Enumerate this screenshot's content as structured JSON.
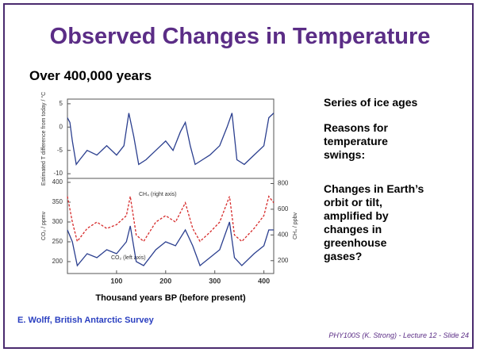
{
  "slide": {
    "title": "Observed Changes in Temperature",
    "subtitle": "Over 400,000 years",
    "points": [
      "Series of ice ages",
      "Reasons for temperature swings:",
      "Changes in Earth’s orbit or tilt, amplified by changes in greenhouse gases?"
    ],
    "credit": "E. Wolff, British Antarctic Survey",
    "footer": "PHY100S (K. Strong) - Lecture 12 - Slide 24"
  },
  "chart_data": [
    {
      "type": "line",
      "ylabel": "Estimated T difference from today / °C",
      "xlim": [
        0,
        420
      ],
      "ylim": [
        -11,
        6
      ],
      "yticks": [
        5,
        0,
        -5,
        -10
      ],
      "series": [
        {
          "color": "#2b3f8f",
          "x": [
            0,
            5,
            10,
            18,
            25,
            40,
            60,
            80,
            100,
            115,
            125,
            135,
            145,
            160,
            180,
            200,
            215,
            230,
            240,
            250,
            260,
            275,
            290,
            310,
            325,
            335,
            345,
            360,
            380,
            400,
            410,
            420
          ],
          "values": [
            2,
            1,
            -3,
            -8,
            -7,
            -5,
            -6,
            -4,
            -6,
            -4,
            3,
            -2,
            -8,
            -7,
            -5,
            -3,
            -5,
            -1,
            1,
            -4,
            -8,
            -7,
            -6,
            -4,
            0,
            3,
            -7,
            -8,
            -6,
            -4,
            2,
            3
          ]
        }
      ]
    },
    {
      "type": "line",
      "xlabel": "Thousand years BP (before present)",
      "ylabel": "CO₂ / ppmv",
      "y2label": "CH₄ / ppbv",
      "xlim": [
        0,
        420
      ],
      "xticks": [
        100,
        200,
        300,
        400
      ],
      "ylim": [
        170,
        410
      ],
      "yticks": [
        400,
        350,
        300,
        250,
        200
      ],
      "y2lim": [
        100,
        840
      ],
      "y2ticks": [
        800,
        600,
        400,
        200
      ],
      "annotations": [
        "CH₄ (right axis)",
        "CO₂ (left axis)"
      ],
      "x": [
        0,
        10,
        20,
        40,
        60,
        80,
        100,
        120,
        128,
        140,
        155,
        180,
        200,
        220,
        240,
        255,
        270,
        290,
        310,
        330,
        340,
        355,
        380,
        400,
        410,
        420
      ],
      "series": [
        {
          "color": "#2b3f8f",
          "dash": false,
          "values": [
            280,
            250,
            190,
            220,
            210,
            230,
            220,
            250,
            290,
            200,
            190,
            230,
            250,
            240,
            280,
            240,
            190,
            210,
            230,
            300,
            210,
            190,
            220,
            240,
            280,
            280
          ]
        },
        {
          "color": "#d62a2a",
          "dash": true,
          "axis": "y2",
          "values": [
            700,
            500,
            350,
            450,
            500,
            450,
            480,
            550,
            700,
            400,
            350,
            500,
            550,
            500,
            650,
            450,
            350,
            420,
            500,
            700,
            400,
            350,
            450,
            550,
            700,
            650
          ]
        }
      ]
    }
  ]
}
